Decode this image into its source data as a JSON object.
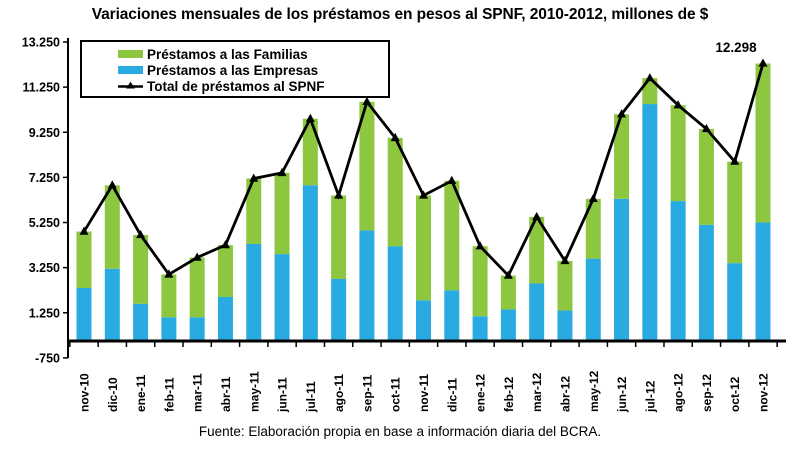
{
  "footer": {
    "source": "Fuente: Elaboración propia en base a información diaria del BCRA."
  },
  "chart_data": {
    "type": "bar",
    "subtype": "stacked-bars-with-total-line",
    "title": "Variaciones mensuales de los préstamos en pesos al SPNF, 2010-2012, millones de $",
    "categories": [
      "nov-10",
      "dic-10",
      "ene-11",
      "feb-11",
      "mar-11",
      "abr-11",
      "may-11",
      "jun-11",
      "jul-11",
      "ago-11",
      "sep-11",
      "oct-11",
      "nov-11",
      "dic-11",
      "ene-12",
      "feb-12",
      "mar-12",
      "abr-12",
      "may-12",
      "jun-12",
      "jul-12",
      "ago-12",
      "sep-12",
      "oct-12",
      "nov-12"
    ],
    "series": [
      {
        "name": "Préstamos a las Familias",
        "role": "bar-top",
        "color": "#8DC63F",
        "values": [
          2500,
          3700,
          3050,
          1900,
          2650,
          2300,
          2900,
          3600,
          2950,
          3700,
          5700,
          4800,
          4650,
          4850,
          3100,
          1500,
          2950,
          2200,
          2650,
          3750,
          1150,
          4250,
          4250,
          4500,
          7048
        ]
      },
      {
        "name": "Préstamos a las Empresas",
        "role": "bar-bottom",
        "color": "#29ABE2",
        "values": [
          2350,
          3200,
          1650,
          1050,
          1050,
          1950,
          4300,
          3850,
          6900,
          2750,
          4900,
          4200,
          1800,
          2250,
          1100,
          1400,
          2550,
          1350,
          3650,
          6300,
          10500,
          6200,
          5150,
          3450,
          5250
        ]
      },
      {
        "name": "Total de préstamos al SPNF",
        "role": "line",
        "color": "#000000",
        "marker": "triangle",
        "values": [
          4850,
          6900,
          4700,
          2950,
          3700,
          4250,
          7200,
          7450,
          9850,
          6450,
          10600,
          9000,
          6450,
          7100,
          4200,
          2900,
          5500,
          3550,
          6300,
          10050,
          11650,
          10450,
          9400,
          7950,
          12298
        ]
      }
    ],
    "ylim": [
      -750,
      13250
    ],
    "ytick_step": 2000,
    "yticks": [
      {
        "v": 13250,
        "label": "13.250"
      },
      {
        "v": 11250,
        "label": "11.250"
      },
      {
        "v": 9250,
        "label": "9.250"
      },
      {
        "v": 7250,
        "label": "7.250"
      },
      {
        "v": 5250,
        "label": "5.250"
      },
      {
        "v": 3250,
        "label": "3.250"
      },
      {
        "v": 1250,
        "label": "1.250"
      },
      {
        "v": -750,
        "label": "-750"
      }
    ],
    "grid": false,
    "legend_position": "top-left-inside",
    "annotations": [
      {
        "text": "12.298",
        "category": "nov-12",
        "series": "Total de préstamos al SPNF"
      }
    ]
  }
}
